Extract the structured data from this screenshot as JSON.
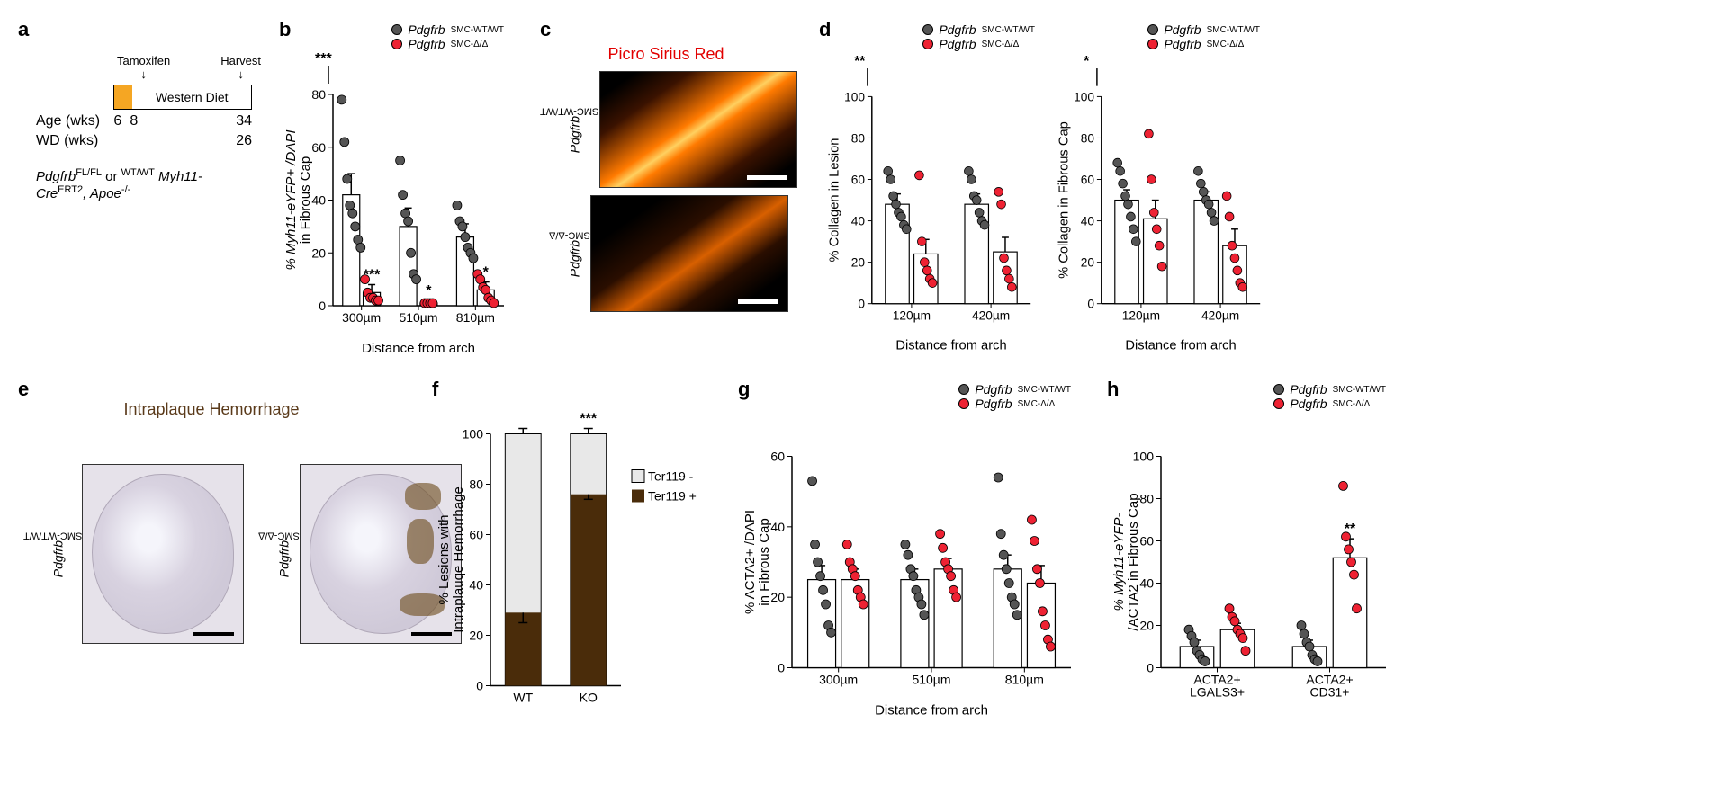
{
  "panelA": {
    "label": "a",
    "tamoxifen": "Tamoxifen",
    "harvest": "Harvest",
    "wdlabel": "Western Diet",
    "age_label": "Age (wks)",
    "age_vals": [
      "6",
      "8",
      "34"
    ],
    "wd_label": "WD (wks)",
    "wd_val": "26",
    "genotype_pre": "Pdgfrb",
    "genotype_sup": "FL/FL",
    "genotype_or": " or ",
    "genotype_sup2": "WT/WT",
    "genotype_rest": " Myh11-Cre",
    "genotype_ert": "ERT2",
    "genotype_apoe": ", Apoe",
    "genotype_apoe_sup": "-/-"
  },
  "legend": {
    "wt_pre": "Pdgfrb",
    "wt_sup": "SMC-WT/WT",
    "ko_pre": "Pdgfrb",
    "ko_sup": "SMC-Δ/Δ",
    "wt_color": "#555555",
    "ko_color": "#ee2233"
  },
  "panelB": {
    "label": "b",
    "ylabel_l1": "% Myh11-eYFP+ /DAPI",
    "ylabel_l2": "in Fibrous Cap",
    "xlabel": "Distance from arch",
    "ylim": [
      0,
      80
    ],
    "ytick": 20,
    "cats": [
      "300µm",
      "510µm",
      "810µm"
    ],
    "top_sig": "***",
    "groups": [
      {
        "wt_mean": 42,
        "wt_err": 8,
        "ko_mean": 5,
        "ko_err": 3,
        "sig": "***",
        "wt_pts": [
          78,
          62,
          48,
          38,
          35,
          30,
          25,
          22
        ],
        "ko_pts": [
          10,
          5,
          3,
          3,
          2,
          2
        ]
      },
      {
        "wt_mean": 30,
        "wt_err": 7,
        "ko_mean": 1,
        "ko_err": 1,
        "sig": "*",
        "wt_pts": [
          55,
          42,
          35,
          32,
          20,
          12,
          10
        ],
        "ko_pts": [
          1,
          1,
          1,
          1
        ]
      },
      {
        "wt_mean": 26,
        "wt_err": 5,
        "ko_mean": 6,
        "ko_err": 3,
        "sig": "*",
        "wt_pts": [
          38,
          32,
          30,
          26,
          22,
          20,
          18
        ],
        "ko_pts": [
          12,
          10,
          7,
          6,
          3,
          2,
          1
        ]
      }
    ]
  },
  "panelC": {
    "label": "c",
    "title": "Picro Sirius Red",
    "side1_pre": "Pdgfrb",
    "side1_sup": "SMC-WT/WT",
    "side2_pre": "Pdgfrb",
    "side2_sup": "SMC-Δ/Δ"
  },
  "panelD": {
    "label": "d",
    "xlabel": "Distance from arch",
    "cats": [
      "120µm",
      "420µm"
    ],
    "ylim": [
      0,
      100
    ],
    "ytick": 20,
    "left": {
      "ylabel": "% Collagen in Lesion",
      "top_sig": "**",
      "groups": [
        {
          "wt_mean": 48,
          "wt_err": 5,
          "ko_mean": 24,
          "ko_err": 7,
          "wt_pts": [
            64,
            60,
            52,
            48,
            44,
            42,
            38,
            36
          ],
          "ko_pts": [
            62,
            30,
            20,
            16,
            12,
            10
          ]
        },
        {
          "wt_mean": 48,
          "wt_err": 5,
          "ko_mean": 25,
          "ko_err": 7,
          "wt_pts": [
            64,
            60,
            52,
            50,
            44,
            40,
            38
          ],
          "ko_pts": [
            54,
            48,
            22,
            16,
            12,
            8
          ]
        }
      ]
    },
    "right": {
      "ylabel": "% Collagen in Fibrous Cap",
      "top_sig": "*",
      "groups": [
        {
          "wt_mean": 50,
          "wt_err": 5,
          "ko_mean": 41,
          "ko_err": 9,
          "wt_pts": [
            68,
            64,
            58,
            52,
            48,
            42,
            36,
            30
          ],
          "ko_pts": [
            82,
            60,
            44,
            36,
            28,
            18
          ]
        },
        {
          "wt_mean": 50,
          "wt_err": 4,
          "ko_mean": 28,
          "ko_err": 8,
          "wt_pts": [
            64,
            58,
            54,
            50,
            48,
            44,
            40
          ],
          "ko_pts": [
            52,
            42,
            28,
            22,
            16,
            10,
            8
          ]
        }
      ]
    }
  },
  "panelE": {
    "label": "e",
    "title": "Intraplaque Hemorrhage",
    "side1_pre": "Pdgfrb",
    "side1_sup": "SMC-WT/WT",
    "side2_pre": "Pdgfrb",
    "side2_sup": "SMC-Δ/Δ"
  },
  "panelF": {
    "label": "f",
    "ylabel_l1": "% Lesions with",
    "ylabel_l2": "Intraplauqe Hemorrhage",
    "ylim": [
      0,
      100
    ],
    "ytick": 20,
    "cats": [
      "WT",
      "KO"
    ],
    "legend_pos": "Ter119 +",
    "legend_neg": "Ter119 -",
    "pos_color": "#4a2c0a",
    "neg_color": "#e8e8e8",
    "bars": [
      {
        "pos": 29,
        "err": 4
      },
      {
        "pos": 76,
        "err": 2
      }
    ],
    "sig": "***"
  },
  "panelG": {
    "label": "g",
    "ylabel_l1": "% ACTA2+ /DAPI",
    "ylabel_l2": "in Fibrous Cap",
    "xlabel": "Distance from arch",
    "ylim": [
      0,
      60
    ],
    "ytick": 20,
    "cats": [
      "300µm",
      "510µm",
      "810µm"
    ],
    "groups": [
      {
        "wt_mean": 25,
        "wt_err": 4,
        "ko_mean": 25,
        "ko_err": 3,
        "wt_pts": [
          53,
          35,
          30,
          26,
          22,
          18,
          12,
          10
        ],
        "ko_pts": [
          35,
          30,
          28,
          26,
          22,
          20,
          18
        ]
      },
      {
        "wt_mean": 25,
        "wt_err": 3,
        "ko_mean": 28,
        "ko_err": 3,
        "wt_pts": [
          35,
          32,
          28,
          26,
          22,
          20,
          18,
          15
        ],
        "ko_pts": [
          38,
          34,
          30,
          28,
          26,
          22,
          20
        ]
      },
      {
        "wt_mean": 28,
        "wt_err": 4,
        "ko_mean": 24,
        "ko_err": 5,
        "wt_pts": [
          54,
          38,
          32,
          28,
          24,
          20,
          18,
          15
        ],
        "ko_pts": [
          42,
          36,
          28,
          24,
          16,
          12,
          8,
          6
        ]
      }
    ]
  },
  "panelH": {
    "label": "h",
    "ylabel_l1": "% Myh11-eYFP-",
    "ylabel_l2": "/ACTA2 in Fibrous Cap",
    "ylim": [
      0,
      100
    ],
    "ytick": 20,
    "cats": [
      "ACTA2+\nLGALS3+",
      "ACTA2+\nCD31+"
    ],
    "groups": [
      {
        "wt_mean": 10,
        "wt_err": 3,
        "ko_mean": 18,
        "ko_err": 3,
        "sig": "",
        "wt_pts": [
          18,
          15,
          12,
          8,
          6,
          4,
          3
        ],
        "ko_pts": [
          28,
          24,
          22,
          18,
          16,
          14,
          8
        ]
      },
      {
        "wt_mean": 10,
        "wt_err": 3,
        "ko_mean": 52,
        "ko_err": 9,
        "sig": "**",
        "wt_pts": [
          20,
          16,
          12,
          10,
          6,
          4,
          3
        ],
        "ko_pts": [
          86,
          62,
          56,
          50,
          44,
          28
        ]
      }
    ]
  }
}
